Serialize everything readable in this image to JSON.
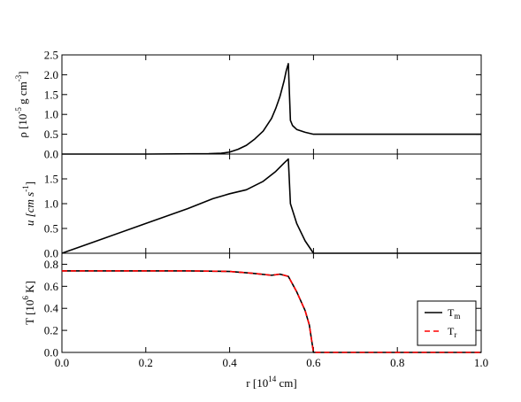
{
  "chart_data": [
    {
      "type": "line",
      "panel": "density",
      "ylabel": {
        "prefix": "ρ [10",
        "exp": "-5",
        "mid": " g cm",
        "exp2": "-3",
        "suffix": "]"
      },
      "xlim": [
        0,
        1
      ],
      "ylim": [
        0,
        2.5
      ],
      "yticks": [
        0.0,
        0.5,
        1.0,
        1.5,
        2.0,
        2.5
      ],
      "ytick_labels": [
        "0.0",
        "0.5",
        "1.0",
        "1.5",
        "2.0",
        "2.5"
      ],
      "series": [
        {
          "color": "#000000",
          "x": [
            0,
            0.2,
            0.35,
            0.38,
            0.4,
            0.42,
            0.44,
            0.46,
            0.48,
            0.5,
            0.51,
            0.52,
            0.53,
            0.535,
            0.54,
            0.545,
            0.55,
            0.56,
            0.58,
            0.6,
            0.7,
            0.8,
            0.9,
            1.0
          ],
          "y": [
            0.0,
            0.0,
            0.01,
            0.02,
            0.05,
            0.12,
            0.22,
            0.38,
            0.58,
            0.9,
            1.15,
            1.45,
            1.85,
            2.1,
            2.28,
            0.85,
            0.72,
            0.62,
            0.55,
            0.5,
            0.5,
            0.5,
            0.5,
            0.5
          ]
        }
      ]
    },
    {
      "type": "line",
      "panel": "velocity",
      "ylabel": {
        "prefix": "u [cm s",
        "exp": "-1",
        "suffix": "]"
      },
      "xlim": [
        0,
        1
      ],
      "ylim": [
        0,
        2.0
      ],
      "yticks": [
        0.0,
        0.5,
        1.0,
        1.5
      ],
      "ytick_labels": [
        "0.0",
        "0.5",
        "1.0",
        "1.5"
      ],
      "series": [
        {
          "color": "#000000",
          "x": [
            0,
            0.1,
            0.2,
            0.3,
            0.36,
            0.4,
            0.44,
            0.48,
            0.51,
            0.53,
            0.54,
            0.545,
            0.56,
            0.58,
            0.6,
            0.7,
            0.8,
            0.9,
            1.0
          ],
          "y": [
            0.0,
            0.3,
            0.6,
            0.9,
            1.1,
            1.2,
            1.28,
            1.45,
            1.65,
            1.82,
            1.9,
            1.0,
            0.6,
            0.25,
            0.0,
            0.0,
            0.0,
            0.0,
            0.0
          ]
        }
      ]
    },
    {
      "type": "line",
      "panel": "temperature",
      "xlabel": {
        "prefix": "r [10",
        "exp": "14",
        "suffix": " cm]"
      },
      "ylabel": {
        "prefix": "T [10",
        "exp": "6",
        "suffix": " K]"
      },
      "xlim": [
        0,
        1
      ],
      "ylim": [
        0,
        0.9
      ],
      "xticks": [
        0.0,
        0.2,
        0.4,
        0.6,
        0.8,
        1.0
      ],
      "xtick_labels": [
        "0.0",
        "0.2",
        "0.4",
        "0.6",
        "0.8",
        "1.0"
      ],
      "yticks": [
        0.0,
        0.2,
        0.4,
        0.6,
        0.8
      ],
      "ytick_labels": [
        "0.0",
        "0.2",
        "0.4",
        "0.6",
        "0.8"
      ],
      "legend_position": "bottom-right",
      "series": [
        {
          "name": "T_m",
          "label_base": "T",
          "label_sub": "m",
          "color": "#000000",
          "dash": "solid",
          "x": [
            0,
            0.1,
            0.2,
            0.3,
            0.4,
            0.45,
            0.5,
            0.52,
            0.54,
            0.56,
            0.58,
            0.59,
            0.6,
            0.61,
            0.7,
            0.8,
            0.9,
            1.0
          ],
          "y": [
            0.74,
            0.74,
            0.74,
            0.74,
            0.735,
            0.72,
            0.7,
            0.71,
            0.69,
            0.55,
            0.38,
            0.25,
            0.0,
            0.0,
            0.0,
            0.0,
            0.0,
            0.0
          ]
        },
        {
          "name": "T_r",
          "label_base": "T",
          "label_sub": "r",
          "color": "#ff0000",
          "dash": "dashed",
          "x": [
            0,
            0.1,
            0.2,
            0.3,
            0.4,
            0.45,
            0.5,
            0.52,
            0.54,
            0.56,
            0.58,
            0.59,
            0.6,
            0.61,
            0.7,
            0.8,
            0.9,
            1.0
          ],
          "y": [
            0.74,
            0.74,
            0.74,
            0.74,
            0.735,
            0.72,
            0.7,
            0.71,
            0.69,
            0.55,
            0.38,
            0.25,
            0.0,
            0.0,
            0.0,
            0.0,
            0.0,
            0.0
          ]
        }
      ]
    }
  ]
}
